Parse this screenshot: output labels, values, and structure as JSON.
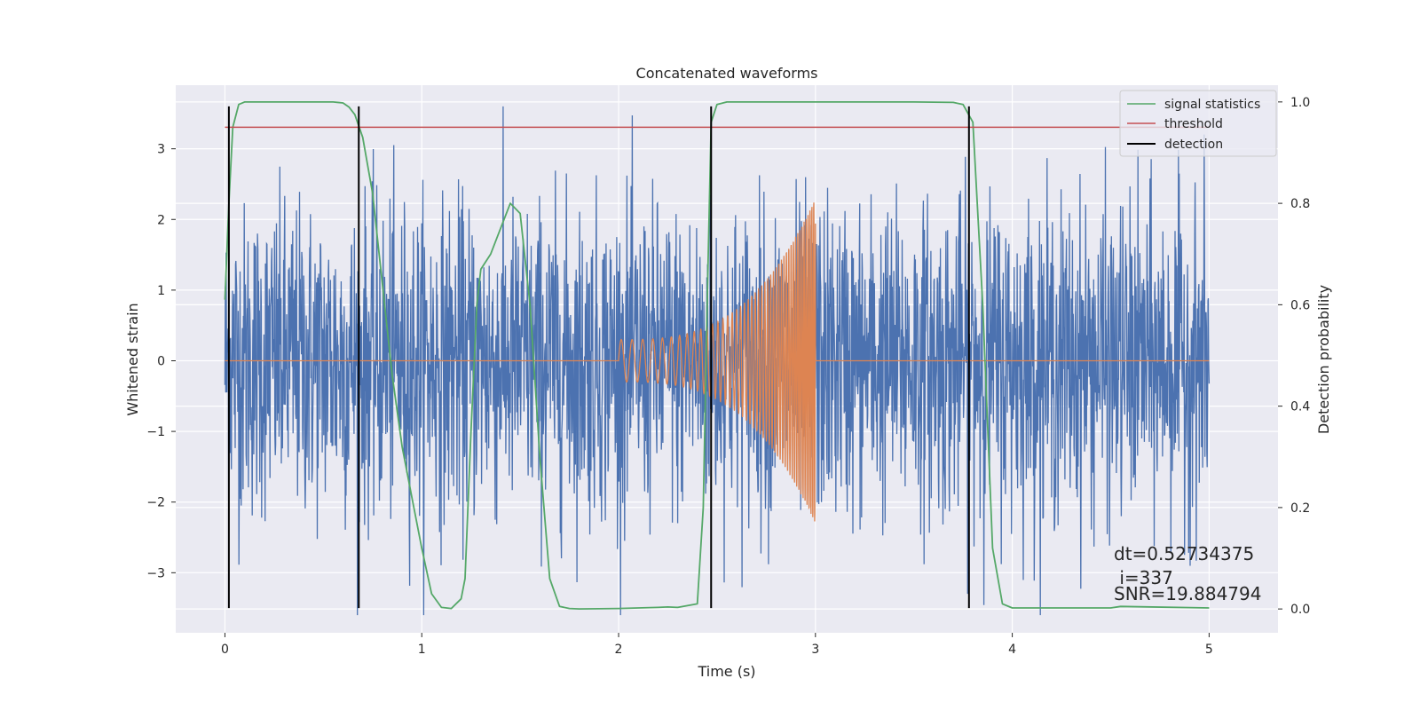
{
  "chart_data": {
    "type": "line",
    "title": "Concatenated waveforms",
    "xlabel": "Time (s)",
    "ylabel": "Whitened strain",
    "ylabel_right": "Detection probability",
    "xlim": [
      -0.25,
      5.35
    ],
    "ylim": [
      -3.85,
      3.9
    ],
    "ylim_right": [
      -0.047,
      1.033
    ],
    "xticks": [
      0,
      1,
      2,
      3,
      4,
      5
    ],
    "yticks": [
      -3,
      -2,
      -1,
      0,
      1,
      2,
      3
    ],
    "yticks_right": [
      0.0,
      0.2,
      0.4,
      0.6,
      0.8,
      1.0
    ],
    "xtick_labels": [
      "0",
      "1",
      "2",
      "3",
      "4",
      "5"
    ],
    "ytick_labels": [
      "−3",
      "−2",
      "−1",
      "0",
      "1",
      "2",
      "3"
    ],
    "ytick_right_labels": [
      "0.0",
      "0.2",
      "0.4",
      "0.6",
      "0.8",
      "1.0"
    ],
    "grid": true,
    "legend_position": "top-right",
    "noise": {
      "x_range": [
        0,
        5
      ],
      "color": "#4c72b0",
      "typical_amplitude": 1.1,
      "peak_amplitude": 3.6
    },
    "waveform": {
      "x_range": [
        0,
        5
      ],
      "chirp_start": 2.0,
      "chirp_end": 3.0,
      "start_amplitude": 0.3,
      "end_amplitude": 2.3,
      "color": "#dd8452"
    },
    "series": [
      {
        "name": "signal statistics",
        "axis": "right",
        "color": "#55a868",
        "x": [
          0.0,
          0.02,
          0.04,
          0.07,
          0.1,
          0.15,
          0.2,
          0.3,
          0.4,
          0.5,
          0.55,
          0.6,
          0.63,
          0.66,
          0.7,
          0.75,
          0.8,
          0.85,
          0.9,
          0.95,
          1.0,
          1.05,
          1.1,
          1.15,
          1.2,
          1.22,
          1.25,
          1.28,
          1.3,
          1.35,
          1.4,
          1.45,
          1.5,
          1.55,
          1.6,
          1.65,
          1.7,
          1.75,
          1.8,
          2.0,
          2.2,
          2.25,
          2.3,
          2.4,
          2.43,
          2.45,
          2.47,
          2.5,
          2.55,
          2.6,
          3.0,
          3.5,
          3.7,
          3.75,
          3.8,
          3.85,
          3.9,
          3.95,
          4.0,
          4.5,
          4.55,
          5.0
        ],
        "y": [
          0.61,
          0.8,
          0.95,
          0.995,
          1.0,
          1.0,
          1.0,
          1.0,
          1.0,
          1.0,
          1.0,
          0.998,
          0.99,
          0.975,
          0.93,
          0.82,
          0.64,
          0.46,
          0.32,
          0.22,
          0.12,
          0.03,
          0.003,
          0.001,
          0.02,
          0.06,
          0.35,
          0.6,
          0.67,
          0.7,
          0.75,
          0.8,
          0.78,
          0.6,
          0.3,
          0.06,
          0.005,
          0.001,
          0.0,
          0.001,
          0.003,
          0.004,
          0.003,
          0.01,
          0.2,
          0.6,
          0.96,
          0.995,
          1.0,
          1.0,
          1.0,
          1.0,
          0.999,
          0.995,
          0.96,
          0.6,
          0.12,
          0.01,
          0.002,
          0.002,
          0.005,
          0.002
        ]
      },
      {
        "name": "threshold",
        "axis": "right",
        "color": "#c44e52",
        "x": [
          0,
          5
        ],
        "y": [
          0.95,
          0.95
        ]
      },
      {
        "name": "detection",
        "axis": "left",
        "color": "#000000",
        "x": [
          0.02,
          0.68,
          2.47,
          3.78
        ],
        "y_range": [
          -3.5,
          3.6
        ]
      }
    ],
    "annotations": [
      "dt=0.52734375",
      " i=337",
      "SNR=19.884794"
    ]
  }
}
